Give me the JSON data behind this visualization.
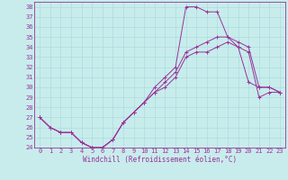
{
  "xlabel": "Windchill (Refroidissement éolien,°C)",
  "bg_color": "#c8ecec",
  "line_color": "#993399",
  "grid_color": "#aadddd",
  "xlim": [
    -0.5,
    23.5
  ],
  "ylim": [
    24,
    38.5
  ],
  "yticks": [
    24,
    25,
    26,
    27,
    28,
    29,
    30,
    31,
    32,
    33,
    34,
    35,
    36,
    37,
    38
  ],
  "xticks": [
    0,
    1,
    2,
    3,
    4,
    5,
    6,
    7,
    8,
    9,
    10,
    11,
    12,
    13,
    14,
    15,
    16,
    17,
    18,
    19,
    20,
    21,
    22,
    23
  ],
  "line1_x": [
    0,
    1,
    2,
    3,
    4,
    5,
    6,
    7,
    8,
    9,
    10,
    11,
    12,
    13,
    14,
    15,
    16,
    17,
    18,
    19,
    20,
    21,
    22,
    23
  ],
  "line1_y": [
    27.0,
    26.0,
    25.5,
    25.5,
    24.5,
    24.0,
    24.0,
    24.8,
    26.5,
    27.5,
    28.5,
    30.0,
    31.0,
    32.0,
    38.0,
    38.0,
    37.5,
    37.5,
    35.0,
    34.0,
    30.5,
    30.0,
    30.0,
    29.5
  ],
  "line2_x": [
    0,
    1,
    2,
    3,
    4,
    5,
    6,
    7,
    8,
    9,
    10,
    11,
    12,
    13,
    14,
    15,
    16,
    17,
    18,
    19,
    20,
    21,
    22,
    23
  ],
  "line2_y": [
    27.0,
    26.0,
    25.5,
    25.5,
    24.5,
    24.0,
    24.0,
    24.8,
    26.5,
    27.5,
    28.5,
    29.5,
    30.5,
    31.5,
    33.5,
    34.0,
    34.5,
    35.0,
    35.0,
    34.5,
    34.0,
    30.0,
    30.0,
    29.5
  ],
  "line3_x": [
    0,
    1,
    2,
    3,
    4,
    5,
    6,
    7,
    8,
    9,
    10,
    11,
    12,
    13,
    14,
    15,
    16,
    17,
    18,
    19,
    20,
    21,
    22,
    23
  ],
  "line3_y": [
    27.0,
    26.0,
    25.5,
    25.5,
    24.5,
    24.0,
    24.0,
    24.8,
    26.5,
    27.5,
    28.5,
    29.5,
    30.0,
    31.0,
    33.0,
    33.5,
    33.5,
    34.0,
    34.5,
    34.0,
    33.5,
    29.0,
    29.5,
    29.5
  ],
  "tick_fontsize": 5,
  "xlabel_fontsize": 5.5
}
